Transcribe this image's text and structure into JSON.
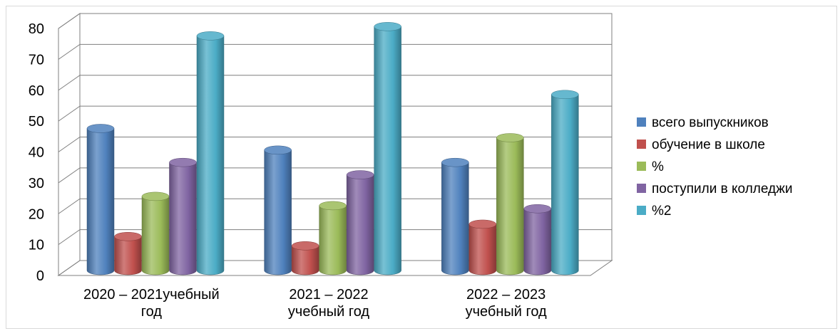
{
  "chart_data": {
    "type": "bar",
    "style": "3d-cylinder",
    "categories": [
      [
        "2020 – 2021учебный",
        "год"
      ],
      [
        "2021 – 2022",
        "учебный год"
      ],
      [
        "2022 – 2023",
        "учебный год"
      ]
    ],
    "series": [
      {
        "name": "всего выпускников",
        "color": "#4f81bd",
        "values": [
          46,
          39,
          35
        ]
      },
      {
        "name": "обучение в школе",
        "color": "#c0504d",
        "values": [
          11,
          8,
          15
        ]
      },
      {
        "name": "%",
        "color": "#9bbb59",
        "values": [
          24,
          21,
          43
        ]
      },
      {
        "name": "поступили в колледжи",
        "color": "#8064a2",
        "values": [
          35,
          31,
          20
        ]
      },
      {
        "name": "%2",
        "color": "#4bacc6",
        "values": [
          76,
          79,
          57
        ]
      }
    ],
    "ylim": [
      0,
      80
    ],
    "yticks": [
      0,
      10,
      20,
      30,
      40,
      50,
      60,
      70,
      80
    ],
    "grid": true,
    "legend_position": "right"
  }
}
